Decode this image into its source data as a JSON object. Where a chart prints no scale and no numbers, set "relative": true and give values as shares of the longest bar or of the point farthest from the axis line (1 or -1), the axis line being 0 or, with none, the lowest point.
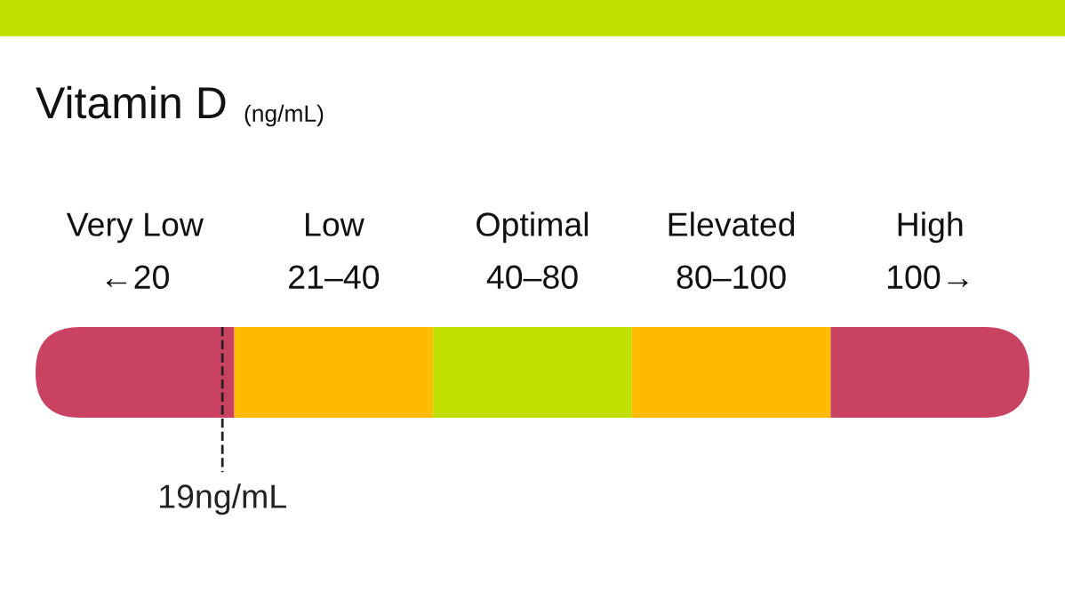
{
  "chart_data": {
    "type": "bar",
    "title": "Vitamin D",
    "subtitle": "(ng/mL)",
    "orientation": "horizontal",
    "stacked": true,
    "relative": true,
    "categories": [
      null
    ],
    "series": [
      {
        "name": "Very Low",
        "color": "#c94262",
        "values": [
          0.2
        ]
      },
      {
        "name": "Low",
        "color": "#ffbb00",
        "values": [
          0.2
        ]
      },
      {
        "name": "Optimal",
        "color": "#bedf00",
        "values": [
          0.2
        ]
      },
      {
        "name": "Elevated",
        "color": "#ffbb00",
        "values": [
          0.2
        ]
      },
      {
        "name": "High",
        "color": "#c94262",
        "values": [
          0.2
        ]
      }
    ],
    "annotations": [
      "←20",
      "21–40",
      "40–80",
      "80–100",
      "100→"
    ],
    "ref_lines": [
      {
        "axis": "x",
        "value": 0.188,
        "label": "19ng/mL",
        "line_style": "dashed",
        "color": "#222222"
      }
    ]
  }
}
